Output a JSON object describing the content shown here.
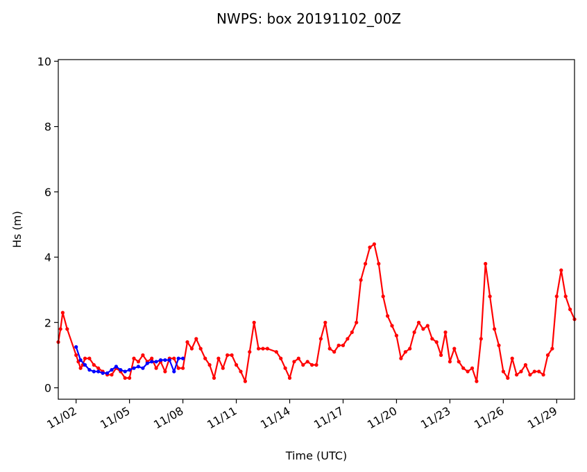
{
  "chart_data": {
    "type": "line",
    "title": "NWPS: box 20191102_00Z",
    "xlabel": "Time (UTC)",
    "ylabel": "Hs (m)",
    "xlim": [
      "2019-11-01",
      "2019-11-30"
    ],
    "ylim": [
      -0.35,
      10.05
    ],
    "x_ticks": [
      "11/02",
      "11/05",
      "11/08",
      "11/11",
      "11/14",
      "11/17",
      "11/20",
      "11/23",
      "11/26",
      "11/29"
    ],
    "x_tick_dates": [
      "2019-11-02",
      "2019-11-05",
      "2019-11-08",
      "2019-11-11",
      "2019-11-14",
      "2019-11-17",
      "2019-11-20",
      "2019-11-23",
      "2019-11-26",
      "2019-11-29"
    ],
    "y_ticks": [
      "0",
      "2",
      "4",
      "6",
      "8",
      "10"
    ],
    "grid": false,
    "series": [
      {
        "color": "#ff0000",
        "marker": "dot",
        "points": [
          [
            "2019-11-01 00:00",
            1.4
          ],
          [
            "2019-11-01 03:00",
            1.8
          ],
          [
            "2019-11-01 06:00",
            2.3
          ],
          [
            "2019-11-01 12:00",
            1.8
          ],
          [
            "2019-11-02 00:00",
            1.0
          ],
          [
            "2019-11-02 03:00",
            0.8
          ],
          [
            "2019-11-02 06:00",
            0.6
          ],
          [
            "2019-11-02 09:00",
            0.7
          ],
          [
            "2019-11-02 12:00",
            0.9
          ],
          [
            "2019-11-02 18:00",
            0.9
          ],
          [
            "2019-11-03 00:00",
            0.7
          ],
          [
            "2019-11-03 06:00",
            0.6
          ],
          [
            "2019-11-03 12:00",
            0.5
          ],
          [
            "2019-11-03 18:00",
            0.4
          ],
          [
            "2019-11-04 00:00",
            0.4
          ],
          [
            "2019-11-04 06:00",
            0.6
          ],
          [
            "2019-11-04 12:00",
            0.5
          ],
          [
            "2019-11-04 18:00",
            0.3
          ],
          [
            "2019-11-05 00:00",
            0.3
          ],
          [
            "2019-11-05 06:00",
            0.9
          ],
          [
            "2019-11-05 12:00",
            0.8
          ],
          [
            "2019-11-05 18:00",
            1.0
          ],
          [
            "2019-11-06 00:00",
            0.8
          ],
          [
            "2019-11-06 06:00",
            0.9
          ],
          [
            "2019-11-06 12:00",
            0.6
          ],
          [
            "2019-11-06 18:00",
            0.8
          ],
          [
            "2019-11-07 00:00",
            0.5
          ],
          [
            "2019-11-07 06:00",
            0.9
          ],
          [
            "2019-11-07 12:00",
            0.9
          ],
          [
            "2019-11-07 18:00",
            0.6
          ],
          [
            "2019-11-08 00:00",
            0.6
          ],
          [
            "2019-11-08 06:00",
            1.4
          ],
          [
            "2019-11-08 12:00",
            1.2
          ],
          [
            "2019-11-08 18:00",
            1.5
          ],
          [
            "2019-11-09 00:00",
            1.2
          ],
          [
            "2019-11-09 06:00",
            0.9
          ],
          [
            "2019-11-09 12:00",
            0.7
          ],
          [
            "2019-11-09 18:00",
            0.3
          ],
          [
            "2019-11-10 00:00",
            0.9
          ],
          [
            "2019-11-10 06:00",
            0.6
          ],
          [
            "2019-11-10 12:00",
            1.0
          ],
          [
            "2019-11-10 18:00",
            1.0
          ],
          [
            "2019-11-11 00:00",
            0.7
          ],
          [
            "2019-11-11 06:00",
            0.5
          ],
          [
            "2019-11-11 12:00",
            0.2
          ],
          [
            "2019-11-11 18:00",
            1.1
          ],
          [
            "2019-11-12 00:00",
            2.0
          ],
          [
            "2019-11-12 06:00",
            1.2
          ],
          [
            "2019-11-12 12:00",
            1.2
          ],
          [
            "2019-11-12 18:00",
            1.2
          ],
          [
            "2019-11-13 06:00",
            1.1
          ],
          [
            "2019-11-13 12:00",
            0.9
          ],
          [
            "2019-11-13 18:00",
            0.6
          ],
          [
            "2019-11-14 00:00",
            0.3
          ],
          [
            "2019-11-14 06:00",
            0.8
          ],
          [
            "2019-11-14 12:00",
            0.9
          ],
          [
            "2019-11-14 18:00",
            0.7
          ],
          [
            "2019-11-15 00:00",
            0.8
          ],
          [
            "2019-11-15 06:00",
            0.7
          ],
          [
            "2019-11-15 12:00",
            0.7
          ],
          [
            "2019-11-15 18:00",
            1.5
          ],
          [
            "2019-11-16 00:00",
            2.0
          ],
          [
            "2019-11-16 06:00",
            1.2
          ],
          [
            "2019-11-16 12:00",
            1.1
          ],
          [
            "2019-11-16 18:00",
            1.3
          ],
          [
            "2019-11-17 00:00",
            1.3
          ],
          [
            "2019-11-17 06:00",
            1.5
          ],
          [
            "2019-11-17 12:00",
            1.7
          ],
          [
            "2019-11-17 18:00",
            2.0
          ],
          [
            "2019-11-18 00:00",
            3.3
          ],
          [
            "2019-11-18 06:00",
            3.8
          ],
          [
            "2019-11-18 12:00",
            4.3
          ],
          [
            "2019-11-18 18:00",
            4.4
          ],
          [
            "2019-11-19 00:00",
            3.8
          ],
          [
            "2019-11-19 06:00",
            2.8
          ],
          [
            "2019-11-19 12:00",
            2.2
          ],
          [
            "2019-11-19 18:00",
            1.9
          ],
          [
            "2019-11-20 00:00",
            1.6
          ],
          [
            "2019-11-20 06:00",
            0.9
          ],
          [
            "2019-11-20 12:00",
            1.1
          ],
          [
            "2019-11-20 18:00",
            1.2
          ],
          [
            "2019-11-21 00:00",
            1.7
          ],
          [
            "2019-11-21 06:00",
            2.0
          ],
          [
            "2019-11-21 12:00",
            1.8
          ],
          [
            "2019-11-21 18:00",
            1.9
          ],
          [
            "2019-11-22 00:00",
            1.5
          ],
          [
            "2019-11-22 06:00",
            1.4
          ],
          [
            "2019-11-22 12:00",
            1.0
          ],
          [
            "2019-11-22 18:00",
            1.7
          ],
          [
            "2019-11-23 00:00",
            0.8
          ],
          [
            "2019-11-23 06:00",
            1.2
          ],
          [
            "2019-11-23 12:00",
            0.8
          ],
          [
            "2019-11-23 18:00",
            0.6
          ],
          [
            "2019-11-24 00:00",
            0.5
          ],
          [
            "2019-11-24 06:00",
            0.6
          ],
          [
            "2019-11-24 12:00",
            0.2
          ],
          [
            "2019-11-24 18:00",
            1.5
          ],
          [
            "2019-11-25 00:00",
            3.8
          ],
          [
            "2019-11-25 06:00",
            2.8
          ],
          [
            "2019-11-25 12:00",
            1.8
          ],
          [
            "2019-11-25 18:00",
            1.3
          ],
          [
            "2019-11-26 00:00",
            0.5
          ],
          [
            "2019-11-26 06:00",
            0.3
          ],
          [
            "2019-11-26 12:00",
            0.9
          ],
          [
            "2019-11-26 18:00",
            0.4
          ],
          [
            "2019-11-27 00:00",
            0.5
          ],
          [
            "2019-11-27 06:00",
            0.7
          ],
          [
            "2019-11-27 12:00",
            0.4
          ],
          [
            "2019-11-27 18:00",
            0.5
          ],
          [
            "2019-11-28 00:00",
            0.5
          ],
          [
            "2019-11-28 06:00",
            0.4
          ],
          [
            "2019-11-28 12:00",
            1.0
          ],
          [
            "2019-11-28 18:00",
            1.2
          ],
          [
            "2019-11-29 00:00",
            2.8
          ],
          [
            "2019-11-29 06:00",
            3.6
          ],
          [
            "2019-11-29 12:00",
            2.8
          ],
          [
            "2019-11-29 18:00",
            2.4
          ],
          [
            "2019-11-30 00:00",
            2.1
          ]
        ]
      },
      {
        "color": "#0000ff",
        "marker": "dot",
        "points": [
          [
            "2019-11-02 00:00",
            1.25
          ],
          [
            "2019-11-02 06:00",
            0.85
          ],
          [
            "2019-11-02 12:00",
            0.7
          ],
          [
            "2019-11-02 18:00",
            0.55
          ],
          [
            "2019-11-03 00:00",
            0.5
          ],
          [
            "2019-11-03 06:00",
            0.5
          ],
          [
            "2019-11-03 12:00",
            0.45
          ],
          [
            "2019-11-03 18:00",
            0.45
          ],
          [
            "2019-11-04 00:00",
            0.55
          ],
          [
            "2019-11-04 06:00",
            0.65
          ],
          [
            "2019-11-04 12:00",
            0.55
          ],
          [
            "2019-11-04 18:00",
            0.5
          ],
          [
            "2019-11-05 00:00",
            0.55
          ],
          [
            "2019-11-05 06:00",
            0.6
          ],
          [
            "2019-11-05 12:00",
            0.65
          ],
          [
            "2019-11-05 18:00",
            0.6
          ],
          [
            "2019-11-06 00:00",
            0.75
          ],
          [
            "2019-11-06 06:00",
            0.8
          ],
          [
            "2019-11-06 12:00",
            0.8
          ],
          [
            "2019-11-06 18:00",
            0.85
          ],
          [
            "2019-11-07 00:00",
            0.85
          ],
          [
            "2019-11-07 06:00",
            0.85
          ],
          [
            "2019-11-07 12:00",
            0.5
          ],
          [
            "2019-11-07 18:00",
            0.9
          ],
          [
            "2019-11-08 00:00",
            0.9
          ]
        ]
      }
    ]
  }
}
